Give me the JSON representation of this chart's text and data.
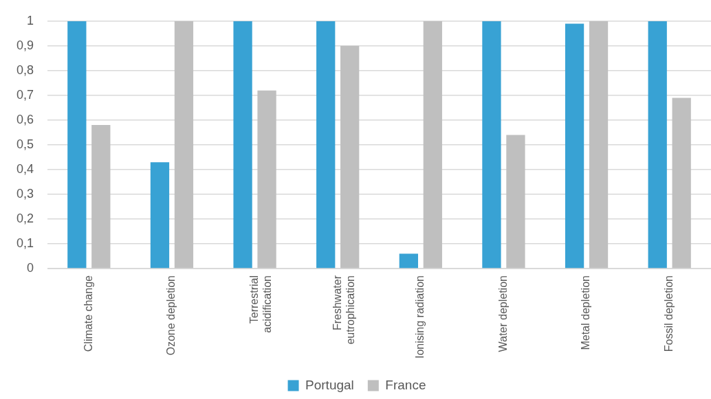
{
  "chart_data": {
    "type": "bar",
    "categories": [
      "Climate change",
      "Ozone depletion",
      "Terrestrial acidification",
      "Freshwater eutrophication",
      "Ionising radiation",
      "Water depletion",
      "Metal depletion",
      "Fossil depletion"
    ],
    "series": [
      {
        "name": "Portugal",
        "color": "#38a2d4",
        "values": [
          1,
          0.43,
          1,
          1,
          0.06,
          1,
          0.99,
          1
        ]
      },
      {
        "name": "France",
        "color": "#bfbfbf",
        "values": [
          0.58,
          1,
          0.72,
          0.9,
          1,
          0.54,
          1,
          0.69
        ]
      }
    ],
    "ylim": [
      0,
      1
    ],
    "yticks": [
      0,
      {
        "value": 0.1,
        "label": "0,1"
      },
      {
        "value": 0.2,
        "label": "0,2"
      },
      {
        "value": 0.3,
        "label": "0,3"
      },
      {
        "value": 0.4,
        "label": "0,4"
      },
      {
        "value": 0.5,
        "label": "0,5"
      },
      {
        "value": 0.6,
        "label": "0,6"
      },
      {
        "value": 0.7,
        "label": "0,7"
      },
      {
        "value": 0.8,
        "label": "0,8"
      },
      {
        "value": 0.9,
        "label": "0,9"
      },
      1
    ],
    "grid": "y",
    "legend": "bottom"
  }
}
